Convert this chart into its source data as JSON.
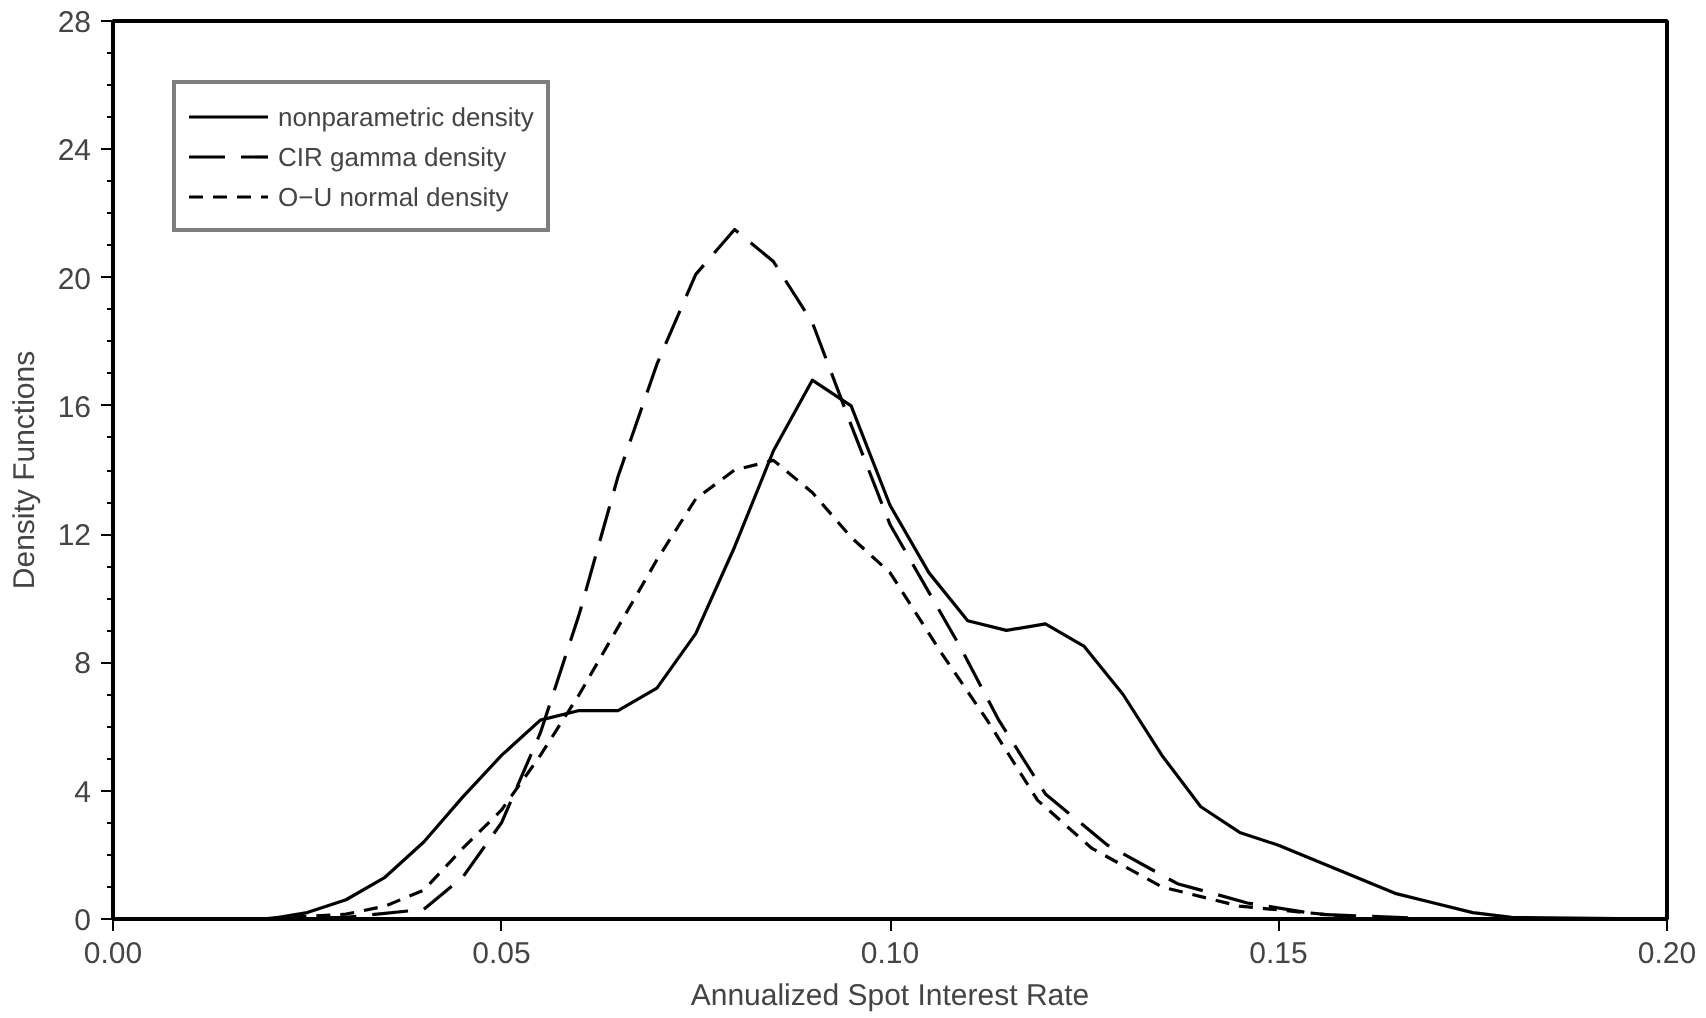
{
  "chart_data": {
    "type": "line",
    "xlabel": "Annualized Spot Interest Rate",
    "ylabel": "Density Functions",
    "xlim": [
      0,
      0.2
    ],
    "ylim": [
      0,
      28
    ],
    "xticks": [
      {
        "value": 0,
        "label": "0.00"
      },
      {
        "value": 0.05,
        "label": "0.05"
      },
      {
        "value": 0.1,
        "label": "0.10"
      },
      {
        "value": 0.15,
        "label": "0.15"
      },
      {
        "value": 0.2,
        "label": "0.20"
      }
    ],
    "yticks": [
      0,
      4,
      8,
      12,
      16,
      20,
      24,
      28
    ],
    "grid": false,
    "legend": "top left",
    "series": [
      {
        "name": "nonparametric density",
        "color": "#000000",
        "line_style": "solid",
        "x": [
          0,
          0.02,
          0.025,
          0.03,
          0.035,
          0.04,
          0.045,
          0.05,
          0.055,
          0.06,
          0.065,
          0.07,
          0.075,
          0.08,
          0.085,
          0.09,
          0.095,
          0.1,
          0.105,
          0.11,
          0.115,
          0.12,
          0.125,
          0.13,
          0.135,
          0.14,
          0.145,
          0.15,
          0.155,
          0.16,
          0.165,
          0.17,
          0.175,
          0.18,
          0.2
        ],
        "values": [
          0,
          0,
          0.2,
          0.6,
          1.3,
          2.4,
          3.8,
          5.1,
          6.2,
          6.5,
          6.5,
          7.2,
          8.9,
          11.6,
          14.6,
          16.8,
          16.0,
          12.9,
          10.8,
          9.3,
          9.0,
          9.2,
          8.5,
          7.0,
          5.1,
          3.5,
          2.7,
          2.3,
          1.8,
          1.3,
          0.8,
          0.5,
          0.2,
          0.05,
          0
        ]
      },
      {
        "name": "CIR gamma density",
        "color": "#000000",
        "line_style": "dashed",
        "x": [
          0.02,
          0.03,
          0.04,
          0.045,
          0.05,
          0.055,
          0.06,
          0.065,
          0.07,
          0.075,
          0.08,
          0.085,
          0.09,
          0.095,
          0.1,
          0.109,
          0.114,
          0.12,
          0.128,
          0.137,
          0.146,
          0.155,
          0.17
        ],
        "values": [
          0,
          0.05,
          0.3,
          1.3,
          3.0,
          5.8,
          9.5,
          13.8,
          17.3,
          20.1,
          21.5,
          20.5,
          18.6,
          15.4,
          12.3,
          8.5,
          6.2,
          3.9,
          2.3,
          1.1,
          0.5,
          0.15,
          0
        ]
      },
      {
        "name": "O−U normal density",
        "color": "#000000",
        "line_style": "dotted",
        "x": [
          0.02,
          0.03,
          0.035,
          0.04,
          0.045,
          0.05,
          0.055,
          0.06,
          0.065,
          0.07,
          0.075,
          0.08,
          0.085,
          0.09,
          0.095,
          0.1,
          0.1066,
          0.1125,
          0.119,
          0.126,
          0.135,
          0.145,
          0.16
        ],
        "values": [
          0.02,
          0.15,
          0.4,
          0.9,
          2.2,
          3.4,
          5.1,
          7.0,
          9.1,
          11.2,
          13.1,
          14.0,
          14.3,
          13.3,
          11.9,
          10.8,
          8.3,
          6.2,
          3.7,
          2.2,
          1.0,
          0.4,
          0.05
        ]
      }
    ]
  }
}
